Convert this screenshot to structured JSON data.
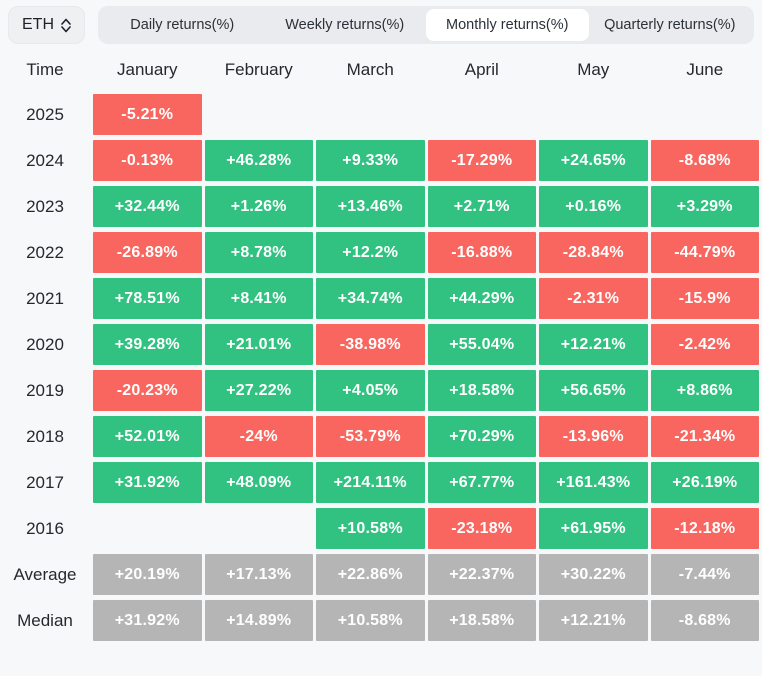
{
  "asset_selector": {
    "label": "ETH",
    "icon": "chevron-up-down-icon"
  },
  "tabs": [
    {
      "label": "Daily returns(%)",
      "active": false
    },
    {
      "label": "Weekly returns(%)",
      "active": false
    },
    {
      "label": "Monthly returns(%)",
      "active": true
    },
    {
      "label": "Quarterly returns(%)",
      "active": false
    }
  ],
  "colors": {
    "positive": "#31c181",
    "negative": "#f8665f",
    "stat": "#b5b5b5",
    "page_background": "#f7f8f9",
    "tabbar_background": "#e9ebee",
    "active_tab_background": "#ffffff"
  },
  "chart_data": {
    "type": "heatmap",
    "title": "Monthly returns(%)",
    "columns": [
      "Time",
      "January",
      "February",
      "March",
      "April",
      "May",
      "June"
    ],
    "rows": [
      {
        "label": "2025",
        "kind": "year",
        "values": [
          "-5.21%",
          "",
          "",
          "",
          "",
          ""
        ]
      },
      {
        "label": "2024",
        "kind": "year",
        "values": [
          "-0.13%",
          "+46.28%",
          "+9.33%",
          "-17.29%",
          "+24.65%",
          "-8.68%"
        ]
      },
      {
        "label": "2023",
        "kind": "year",
        "values": [
          "+32.44%",
          "+1.26%",
          "+13.46%",
          "+2.71%",
          "+0.16%",
          "+3.29%"
        ]
      },
      {
        "label": "2022",
        "kind": "year",
        "values": [
          "-26.89%",
          "+8.78%",
          "+12.2%",
          "-16.88%",
          "-28.84%",
          "-44.79%"
        ]
      },
      {
        "label": "2021",
        "kind": "year",
        "values": [
          "+78.51%",
          "+8.41%",
          "+34.74%",
          "+44.29%",
          "-2.31%",
          "-15.9%"
        ]
      },
      {
        "label": "2020",
        "kind": "year",
        "values": [
          "+39.28%",
          "+21.01%",
          "-38.98%",
          "+55.04%",
          "+12.21%",
          "-2.42%"
        ]
      },
      {
        "label": "2019",
        "kind": "year",
        "values": [
          "-20.23%",
          "+27.22%",
          "+4.05%",
          "+18.58%",
          "+56.65%",
          "+8.86%"
        ]
      },
      {
        "label": "2018",
        "kind": "year",
        "values": [
          "+52.01%",
          "-24%",
          "-53.79%",
          "+70.29%",
          "-13.96%",
          "-21.34%"
        ]
      },
      {
        "label": "2017",
        "kind": "year",
        "values": [
          "+31.92%",
          "+48.09%",
          "+214.11%",
          "+67.77%",
          "+161.43%",
          "+26.19%"
        ]
      },
      {
        "label": "2016",
        "kind": "year",
        "values": [
          "",
          "",
          "+10.58%",
          "-23.18%",
          "+61.95%",
          "-12.18%"
        ]
      },
      {
        "label": "Average",
        "kind": "stat",
        "values": [
          "+20.19%",
          "+17.13%",
          "+22.86%",
          "+22.37%",
          "+30.22%",
          "-7.44%"
        ]
      },
      {
        "label": "Median",
        "kind": "stat",
        "values": [
          "+31.92%",
          "+14.89%",
          "+10.58%",
          "+18.58%",
          "+12.21%",
          "-8.68%"
        ]
      }
    ]
  }
}
